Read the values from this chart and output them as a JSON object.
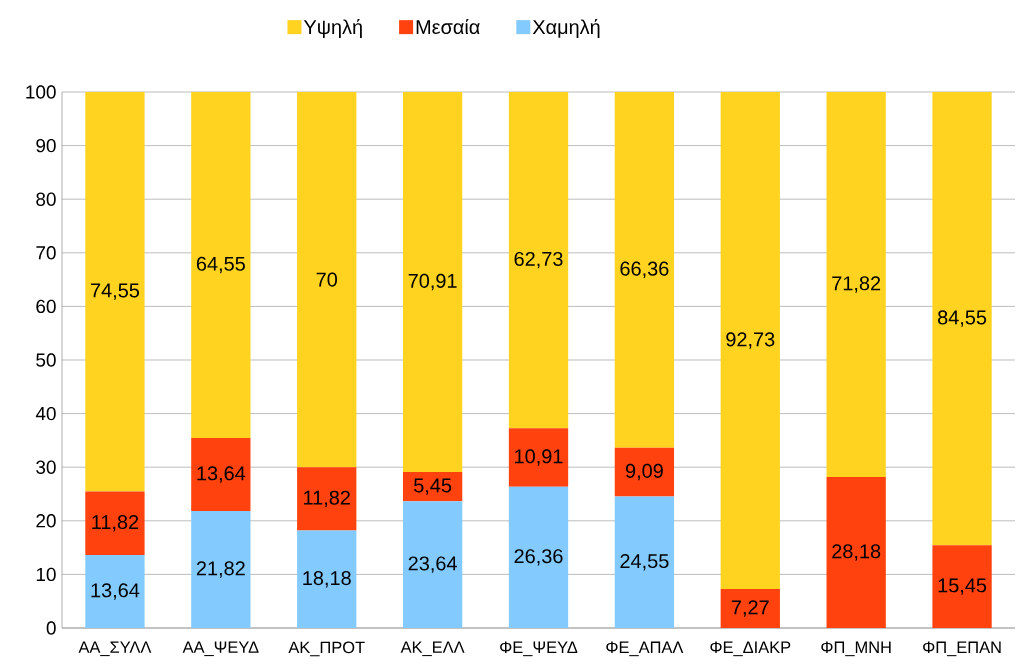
{
  "chart_data": {
    "type": "bar",
    "stacked": true,
    "categories": [
      "ΑΑ_ΣΥΛΛ",
      "ΑΑ_ΨΕΥΔ",
      "ΑΚ_ΠΡΟΤ",
      "ΑΚ_ΕΛΛ",
      "ΦΕ_ΨΕΥΔ",
      "ΦΕ_ΑΠΑΛ",
      "ΦΕ_ΔΙΑΚΡ",
      "ΦΠ_ΜΝΗ",
      "ΦΠ_ΕΠΑΝ"
    ],
    "series": [
      {
        "name": "Χαμηλή",
        "color": "#83caff",
        "values": [
          13.64,
          21.82,
          18.18,
          23.64,
          26.36,
          24.55,
          0,
          0,
          0
        ],
        "value_labels": [
          "13,64",
          "21,82",
          "18,18",
          "23,64",
          "26,36",
          "24,55",
          null,
          null,
          null
        ]
      },
      {
        "name": "Μεσαία",
        "color": "#ff420e",
        "values": [
          11.82,
          13.64,
          11.82,
          5.45,
          10.91,
          9.09,
          7.27,
          28.18,
          15.45
        ],
        "value_labels": [
          "11,82",
          "13,64",
          "11,82",
          "5,45",
          "10,91",
          "9,09",
          "7,27",
          "28,18",
          "15,45"
        ]
      },
      {
        "name": "Υψηλή",
        "color": "#ffd320",
        "values": [
          74.55,
          64.55,
          70,
          70.91,
          62.73,
          66.36,
          92.73,
          71.82,
          84.55
        ],
        "value_labels": [
          "74,55",
          "64,55",
          "70",
          "70,91",
          "62,73",
          "66,36",
          "92,73",
          "71,82",
          "84,55"
        ]
      }
    ],
    "ylim": [
      0,
      100
    ],
    "yticks": [
      0,
      10,
      20,
      30,
      40,
      50,
      60,
      70,
      80,
      90,
      100
    ],
    "grid": "y",
    "legend": "top"
  }
}
